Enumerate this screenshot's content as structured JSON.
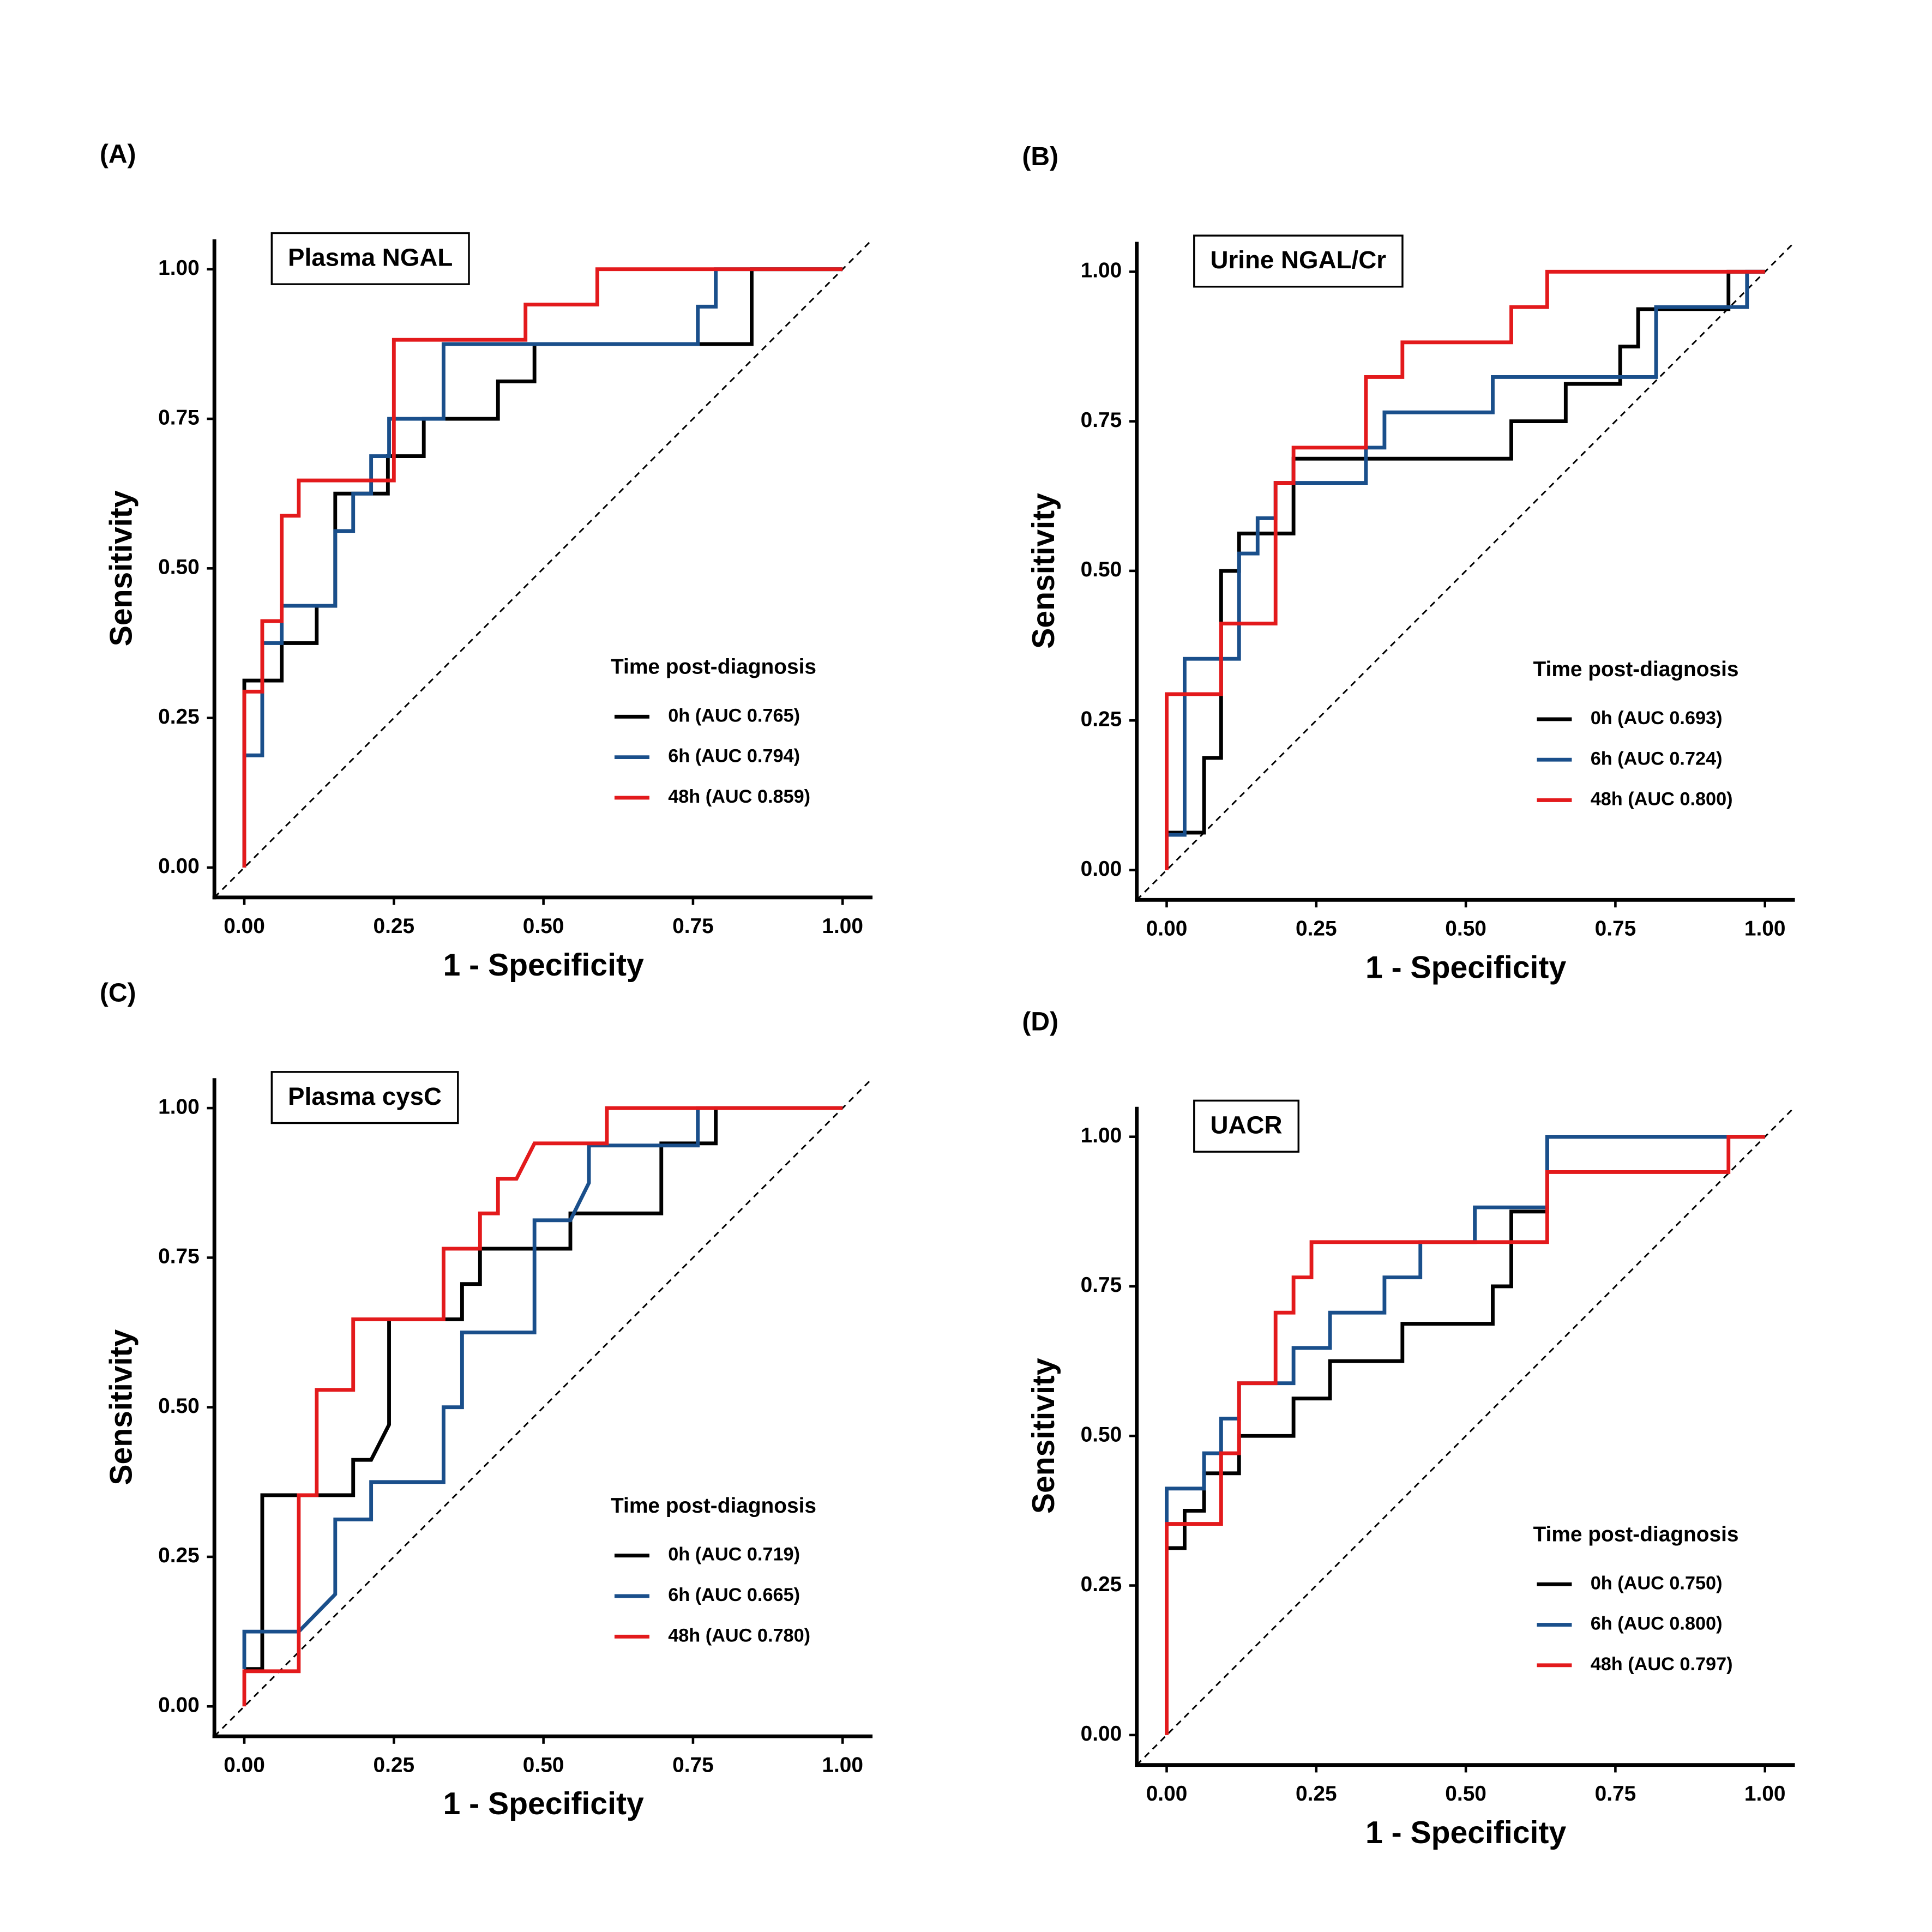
{
  "chart_data": [
    {
      "type": "line",
      "panel_label": "(A)",
      "title": "Plasma NGAL",
      "xlabel": "1 - Specificity",
      "ylabel": "Sensitivity",
      "legend_title": "Time post-diagnosis",
      "legend": "lower right",
      "xlim": [
        -0.05,
        1.05
      ],
      "ylim": [
        -0.05,
        1.05
      ],
      "xticks": [
        {
          "value": 0,
          "label": "0.00"
        },
        {
          "value": 0.25,
          "label": "0.25"
        },
        {
          "value": 0.5,
          "label": "0.50"
        },
        {
          "value": 0.75,
          "label": "0.75"
        },
        {
          "value": 1,
          "label": "1.00"
        }
      ],
      "yticks": [
        {
          "value": 0,
          "label": "0.00"
        },
        {
          "value": 0.25,
          "label": "0.25"
        },
        {
          "value": 0.5,
          "label": "0.50"
        },
        {
          "value": 0.75,
          "label": "0.75"
        },
        {
          "value": 1,
          "label": "1.00"
        }
      ],
      "series": [
        {
          "name": "0h (AUC 0.765)",
          "color": "#000000",
          "x": [
            0,
            0,
            0.0625,
            0.0625,
            0.121,
            0.121,
            0.152,
            0.152,
            0.24,
            0.24,
            0.3,
            0.3,
            0.424,
            0.424,
            0.485,
            0.485,
            0.848,
            0.848,
            1
          ],
          "values": [
            0,
            0.3125,
            0.3125,
            0.375,
            0.375,
            0.4375,
            0.4375,
            0.625,
            0.625,
            0.6875,
            0.6875,
            0.75,
            0.75,
            0.8125,
            0.8125,
            0.875,
            0.875,
            1,
            1
          ]
        },
        {
          "name": "6h (AUC 0.794)",
          "color": "#1a4f8b",
          "x": [
            0,
            0,
            0.03,
            0.03,
            0.0625,
            0.0625,
            0.152,
            0.152,
            0.182,
            0.182,
            0.212,
            0.212,
            0.242,
            0.242,
            0.333,
            0.333,
            0.758,
            0.758,
            0.788,
            0.788,
            1
          ],
          "values": [
            0,
            0.1875,
            0.1875,
            0.375,
            0.375,
            0.4375,
            0.4375,
            0.5625,
            0.5625,
            0.625,
            0.625,
            0.6875,
            0.6875,
            0.75,
            0.75,
            0.875,
            0.875,
            0.9375,
            0.9375,
            1,
            1
          ]
        },
        {
          "name": "48h (AUC 0.859)",
          "color": "#e31a1c",
          "x": [
            0,
            0,
            0.03,
            0.03,
            0.0625,
            0.0625,
            0.091,
            0.091,
            0.25,
            0.25,
            0.47,
            0.47,
            0.59,
            0.59,
            1
          ],
          "values": [
            0,
            0.294,
            0.294,
            0.412,
            0.412,
            0.588,
            0.588,
            0.647,
            0.647,
            0.882,
            0.882,
            0.941,
            0.941,
            1,
            1
          ]
        }
      ]
    },
    {
      "type": "line",
      "panel_label": "(B)",
      "title": "Urine NGAL/Cr",
      "xlabel": "1 - Specificity",
      "ylabel": "Sensitivity",
      "legend_title": "Time post-diagnosis",
      "legend": "lower right",
      "xlim": [
        -0.05,
        1.05
      ],
      "ylim": [
        -0.05,
        1.05
      ],
      "xticks": [
        {
          "value": 0,
          "label": "0.00"
        },
        {
          "value": 0.25,
          "label": "0.25"
        },
        {
          "value": 0.5,
          "label": "0.50"
        },
        {
          "value": 0.75,
          "label": "0.75"
        },
        {
          "value": 1,
          "label": "1.00"
        }
      ],
      "yticks": [
        {
          "value": 0,
          "label": "0.00"
        },
        {
          "value": 0.25,
          "label": "0.25"
        },
        {
          "value": 0.5,
          "label": "0.50"
        },
        {
          "value": 0.75,
          "label": "0.75"
        },
        {
          "value": 1,
          "label": "1.00"
        }
      ],
      "series": [
        {
          "name": "0h (AUC 0.693)",
          "color": "#000000",
          "x": [
            0,
            0,
            0.0625,
            0.0625,
            0.091,
            0.091,
            0.121,
            0.121,
            0.212,
            0.212,
            0.576,
            0.576,
            0.667,
            0.667,
            0.758,
            0.758,
            0.788,
            0.788,
            0.939,
            0.939,
            1
          ],
          "values": [
            0,
            0.0625,
            0.0625,
            0.1875,
            0.1875,
            0.5,
            0.5,
            0.5625,
            0.5625,
            0.6875,
            0.6875,
            0.75,
            0.75,
            0.8125,
            0.8125,
            0.875,
            0.875,
            0.9375,
            0.9375,
            1,
            1
          ]
        },
        {
          "name": "6h (AUC 0.724)",
          "color": "#1a4f8b",
          "x": [
            0,
            0,
            0.03,
            0.03,
            0.121,
            0.121,
            0.152,
            0.152,
            0.182,
            0.182,
            0.333,
            0.333,
            0.364,
            0.364,
            0.545,
            0.545,
            0.818,
            0.818,
            0.97,
            0.97,
            1
          ],
          "values": [
            0,
            0.0588,
            0.0588,
            0.353,
            0.353,
            0.529,
            0.529,
            0.588,
            0.588,
            0.647,
            0.647,
            0.706,
            0.706,
            0.765,
            0.765,
            0.824,
            0.824,
            0.941,
            0.941,
            1,
            1
          ]
        },
        {
          "name": "48h (AUC 0.800)",
          "color": "#e31a1c",
          "x": [
            0,
            0,
            0.091,
            0.091,
            0.182,
            0.182,
            0.212,
            0.212,
            0.333,
            0.333,
            0.394,
            0.394,
            0.576,
            0.576,
            0.636,
            0.636,
            1
          ],
          "values": [
            0,
            0.294,
            0.294,
            0.412,
            0.412,
            0.647,
            0.647,
            0.706,
            0.706,
            0.824,
            0.824,
            0.882,
            0.882,
            0.941,
            0.941,
            1,
            1
          ]
        }
      ]
    },
    {
      "type": "line",
      "panel_label": "(C)",
      "title": "Plasma cysC",
      "xlabel": "1 - Specificity",
      "ylabel": "Sensitivity",
      "legend_title": "Time post-diagnosis",
      "legend": "lower right",
      "xlim": [
        -0.05,
        1.05
      ],
      "ylim": [
        -0.05,
        1.05
      ],
      "xticks": [
        {
          "value": 0,
          "label": "0.00"
        },
        {
          "value": 0.25,
          "label": "0.25"
        },
        {
          "value": 0.5,
          "label": "0.50"
        },
        {
          "value": 0.75,
          "label": "0.75"
        },
        {
          "value": 1,
          "label": "1.00"
        }
      ],
      "yticks": [
        {
          "value": 0,
          "label": "0.00"
        },
        {
          "value": 0.25,
          "label": "0.25"
        },
        {
          "value": 0.5,
          "label": "0.50"
        },
        {
          "value": 0.75,
          "label": "0.75"
        },
        {
          "value": 1,
          "label": "1.00"
        }
      ],
      "series": [
        {
          "name": "0h (AUC 0.719)",
          "color": "#000000",
          "x": [
            0,
            0.03,
            0.03,
            0.182,
            0.182,
            0.212,
            0.242,
            0.242,
            0.364,
            0.364,
            0.394,
            0.394,
            0.545,
            0.545,
            0.697,
            0.697,
            0.788,
            0.788,
            1
          ],
          "values": [
            0.0625,
            0.0625,
            0.353,
            0.353,
            0.412,
            0.412,
            0.471,
            0.647,
            0.647,
            0.706,
            0.706,
            0.765,
            0.765,
            0.824,
            0.824,
            0.941,
            0.941,
            1,
            1
          ]
        },
        {
          "name": "6h (AUC 0.665)",
          "color": "#1a4f8b",
          "x": [
            0,
            0,
            0.091,
            0.152,
            0.152,
            0.212,
            0.212,
            0.333,
            0.333,
            0.364,
            0.364,
            0.485,
            0.485,
            0.545,
            0.576,
            0.576,
            0.758,
            0.758,
            1
          ],
          "values": [
            0.0625,
            0.125,
            0.125,
            0.1875,
            0.3125,
            0.3125,
            0.375,
            0.375,
            0.5,
            0.5,
            0.625,
            0.625,
            0.8125,
            0.8125,
            0.875,
            0.9375,
            0.9375,
            1,
            1
          ]
        },
        {
          "name": "48h (AUC 0.780)",
          "color": "#e31a1c",
          "x": [
            0,
            0,
            0.091,
            0.091,
            0.121,
            0.121,
            0.182,
            0.182,
            0.333,
            0.333,
            0.394,
            0.394,
            0.424,
            0.424,
            0.455,
            0.485,
            0.606,
            0.606,
            1
          ],
          "values": [
            0,
            0.0588,
            0.0588,
            0.353,
            0.353,
            0.529,
            0.529,
            0.647,
            0.647,
            0.765,
            0.765,
            0.824,
            0.824,
            0.882,
            0.882,
            0.941,
            0.941,
            1,
            1
          ]
        }
      ]
    },
    {
      "type": "line",
      "panel_label": "(D)",
      "title": "UACR",
      "xlabel": "1 - Specificity",
      "ylabel": "Sensitivity",
      "legend_title": "Time post-diagnosis",
      "legend": "lower right",
      "xlim": [
        -0.05,
        1.05
      ],
      "ylim": [
        -0.05,
        1.05
      ],
      "xticks": [
        {
          "value": 0,
          "label": "0.00"
        },
        {
          "value": 0.25,
          "label": "0.25"
        },
        {
          "value": 0.5,
          "label": "0.50"
        },
        {
          "value": 0.75,
          "label": "0.75"
        },
        {
          "value": 1,
          "label": "1.00"
        }
      ],
      "yticks": [
        {
          "value": 0,
          "label": "0.00"
        },
        {
          "value": 0.25,
          "label": "0.25"
        },
        {
          "value": 0.5,
          "label": "0.50"
        },
        {
          "value": 0.75,
          "label": "0.75"
        },
        {
          "value": 1,
          "label": "1.00"
        }
      ],
      "series": [
        {
          "name": "0h (AUC 0.750)",
          "color": "#000000",
          "x": [
            0,
            0.03,
            0.03,
            0.0625,
            0.0625,
            0.121,
            0.121,
            0.212,
            0.212,
            0.273,
            0.273,
            0.394,
            0.394,
            0.545,
            0.545,
            0.576,
            0.576,
            0.636,
            0.636,
            1
          ],
          "values": [
            0.3125,
            0.3125,
            0.375,
            0.375,
            0.4375,
            0.4375,
            0.5,
            0.5,
            0.5625,
            0.5625,
            0.625,
            0.625,
            0.6875,
            0.6875,
            0.75,
            0.75,
            0.875,
            0.875,
            1,
            1
          ]
        },
        {
          "name": "6h (AUC 0.800)",
          "color": "#1a4f8b",
          "x": [
            0,
            0,
            0.0625,
            0.0625,
            0.091,
            0.091,
            0.121,
            0.121,
            0.212,
            0.212,
            0.273,
            0.273,
            0.364,
            0.364,
            0.424,
            0.424,
            0.515,
            0.515,
            0.636,
            0.636,
            1
          ],
          "values": [
            0.353,
            0.412,
            0.412,
            0.471,
            0.471,
            0.529,
            0.529,
            0.588,
            0.588,
            0.647,
            0.647,
            0.706,
            0.706,
            0.765,
            0.765,
            0.824,
            0.824,
            0.882,
            0.882,
            1,
            1
          ]
        },
        {
          "name": "48h (AUC 0.797)",
          "color": "#e31a1c",
          "x": [
            0,
            0,
            0.091,
            0.091,
            0.121,
            0.121,
            0.182,
            0.182,
            0.212,
            0.212,
            0.242,
            0.242,
            0.636,
            0.636,
            0.939,
            0.939,
            1
          ],
          "values": [
            0,
            0.353,
            0.353,
            0.471,
            0.471,
            0.588,
            0.588,
            0.706,
            0.706,
            0.765,
            0.765,
            0.824,
            0.824,
            0.941,
            0.941,
            1,
            1
          ]
        }
      ]
    }
  ]
}
